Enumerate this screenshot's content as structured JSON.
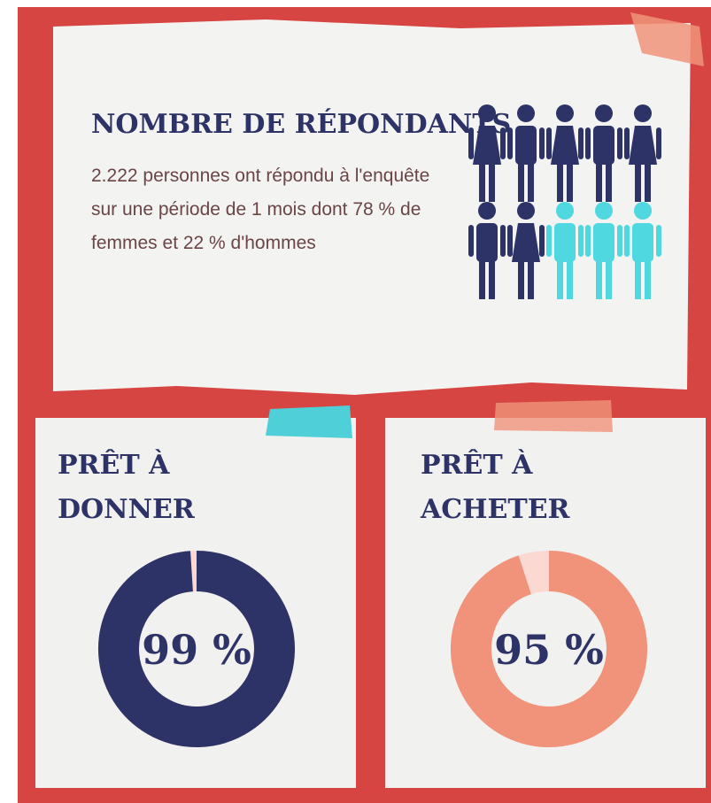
{
  "header": {
    "title": "NOMBRE DE RÉPONDANTS",
    "text_lines": [
      "2.222 personnes ont répondu à l'enquête",
      "sur une période de 1 mois dont 78 % de",
      "femmes et 22 % d'hommes"
    ]
  },
  "cards": [
    {
      "title_lines": [
        "PRÊT À",
        "DONNER"
      ],
      "value": 99,
      "value_label": "99 %",
      "color": "#2d3366"
    },
    {
      "title_lines": [
        "PRÊT À",
        "ACHETER"
      ],
      "value": 95,
      "value_label": "95 %",
      "color": "#f0937a"
    }
  ]
}
